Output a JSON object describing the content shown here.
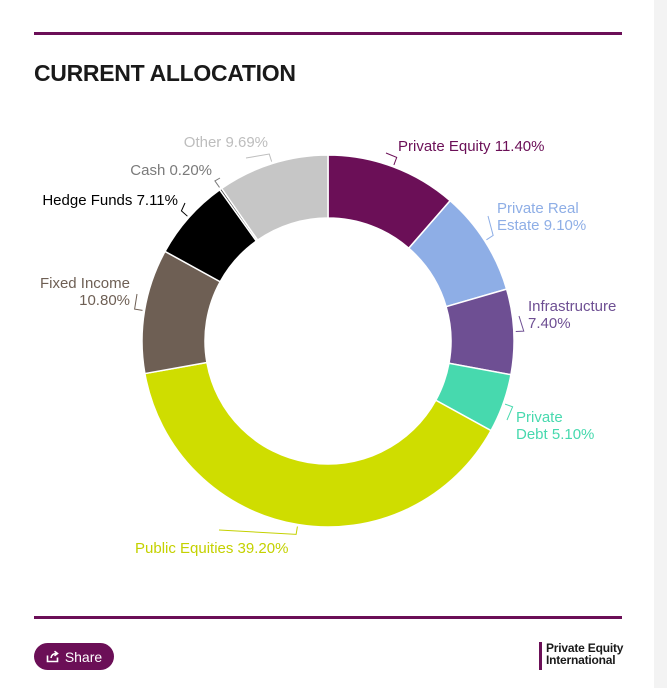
{
  "chart_data": {
    "type": "pie",
    "title": "CURRENT ALLOCATION",
    "slices": [
      {
        "label": "Private Equity",
        "value": 11.4,
        "value_text": "11.40%",
        "color": "#6b0f57"
      },
      {
        "label": "Private Real Estate",
        "value": 9.1,
        "value_text": "9.10%",
        "color": "#8eaee6"
      },
      {
        "label": "Infrastructure",
        "value": 7.4,
        "value_text": "7.40%",
        "color": "#6e4f93"
      },
      {
        "label": "Private Debt",
        "value": 5.1,
        "value_text": "5.10%",
        "color": "#47d9ae"
      },
      {
        "label": "Public Equities",
        "value": 39.2,
        "value_text": "39.20%",
        "color": "#cfdd00"
      },
      {
        "label": "Fixed Income",
        "value": 10.8,
        "value_text": "10.80%",
        "color": "#6e5f54"
      },
      {
        "label": "Hedge Funds",
        "value": 7.11,
        "value_text": "7.11%",
        "color": "#000000"
      },
      {
        "label": "Cash",
        "value": 0.2,
        "value_text": "0.20%",
        "color": "#3a3a3a"
      },
      {
        "label": "Other",
        "value": 9.69,
        "value_text": "9.69%",
        "color": "#c6c6c6"
      }
    ],
    "label_colors": {
      "Private Equity": "#6b0f57",
      "Private Real Estate": "#8eaee6",
      "Infrastructure": "#6e4f93",
      "Private Debt": "#47d9ae",
      "Public Equities": "#c4d100",
      "Fixed Income": "#6e5f54",
      "Hedge Funds": "#000000",
      "Cash": "#7a7a7a",
      "Other": "#bdbdbd"
    }
  },
  "footer": {
    "share_label": "Share",
    "brand_line1": "Private Equity",
    "brand_line2": "International"
  },
  "icons": {
    "share": "share-icon"
  }
}
